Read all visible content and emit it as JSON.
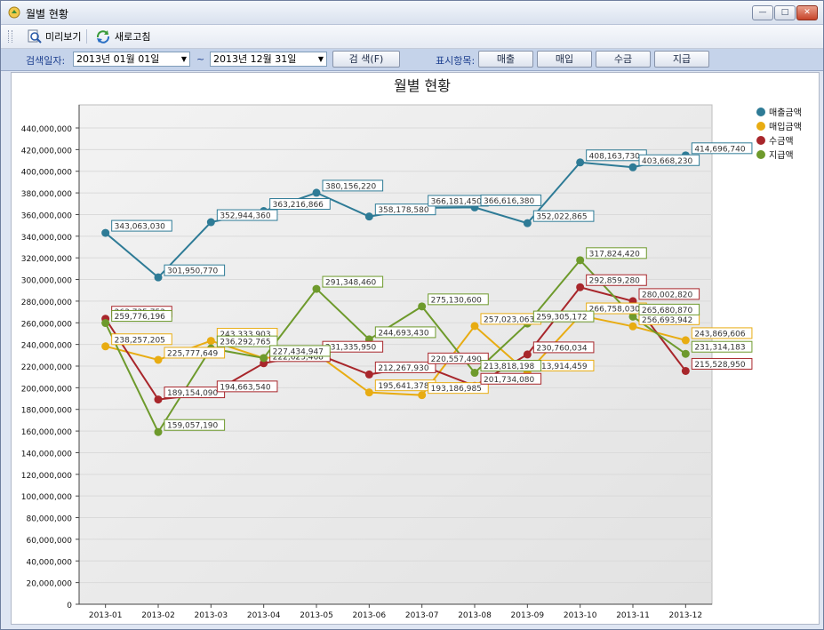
{
  "window": {
    "title": "월별 현황"
  },
  "toolbar": {
    "preview_label": "미리보기",
    "refresh_label": "새로고침"
  },
  "filter": {
    "search_date_label": "검색일자:",
    "start_date": "2013년 01월 01일",
    "tilde": "~",
    "end_date": "2013년 12월 31일",
    "search_button": "검 색(F)",
    "display_label": "표시항목:",
    "buttons": [
      "매출",
      "매입",
      "수금",
      "지급"
    ]
  },
  "chart_data": {
    "type": "line",
    "title": "월별 현황",
    "categories": [
      "2013-01",
      "2013-02",
      "2013-03",
      "2013-04",
      "2013-05",
      "2013-06",
      "2013-07",
      "2013-08",
      "2013-09",
      "2013-10",
      "2013-11",
      "2013-12"
    ],
    "ylim": [
      0,
      440000000
    ],
    "ytick_step": 20000000,
    "grid": true,
    "legend_position": "top-right",
    "series": [
      {
        "name": "매출금액",
        "color": "#2e7b96",
        "values": [
          343063030,
          301950770,
          352944360,
          363216866,
          380156220,
          358178580,
          366181450,
          366616380,
          352022865,
          408163730,
          403668230,
          414696740
        ],
        "labels": [
          "343,063,030",
          "301,950,770",
          "352,944,360",
          "363,216,866",
          "380,156,220",
          "358,178,580",
          "366,181,450",
          "366,616,380",
          "352,022,865",
          "408,163,730",
          "403,668,230",
          "414,696,740"
        ]
      },
      {
        "name": "매입금액",
        "color": "#e8ac12",
        "values": [
          238257205,
          225777649,
          243333903,
          227434947,
          231332650,
          195641378,
          193186985,
          257023063,
          213914459,
          266758030,
          256693942,
          243869606
        ],
        "labels": [
          "238,257,205",
          "225,777,649",
          "243,333,903",
          "",
          "",
          "195,641,378",
          "193,186,985",
          "257,023,063",
          "213,914,459",
          "266,758,030",
          "256,693,942",
          "243,869,606"
        ]
      },
      {
        "name": "수금액",
        "color": "#a8262b",
        "values": [
          263735752,
          189154090,
          194663540,
          222623468,
          231335950,
          212267930,
          220557490,
          201734080,
          230760034,
          292859280,
          280002820,
          215528950
        ],
        "labels": [
          "263,735,752",
          "189,154,090",
          "194,663,540",
          "222,623,468",
          "231,335,950",
          "212,267,930",
          "220,557,490",
          "201,734,080",
          "230,760,034",
          "292,859,280",
          "280,002,820",
          "215,528,950"
        ]
      },
      {
        "name": "지급액",
        "color": "#6e9a2c",
        "values": [
          259776196,
          159057190,
          236292765,
          227434947,
          291348460,
          244693430,
          275130600,
          213818198,
          259305172,
          317824420,
          265680870,
          231314183
        ],
        "labels": [
          "259,776,196",
          "159,057,190",
          "236,292,765",
          "227,434,947",
          "291,348,460",
          "244,693,430",
          "275,130,600",
          "213,818,198",
          "259,305,172",
          "317,824,420",
          "265,680,870",
          "231,314,183"
        ]
      }
    ]
  }
}
